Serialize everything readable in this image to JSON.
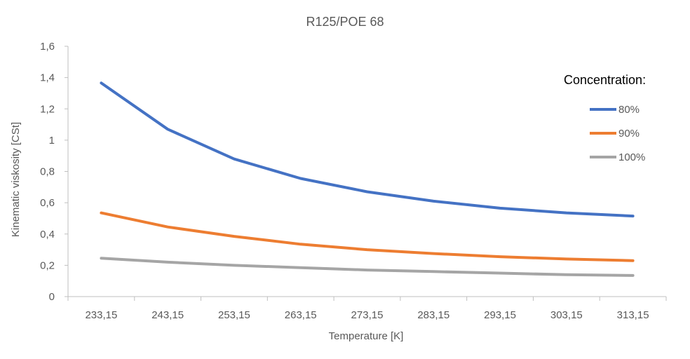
{
  "chart_data": {
    "type": "line",
    "title": "R125/POE 68",
    "xlabel": "Temperature [K]",
    "ylabel": "Kinematic viskosity  [CSt]",
    "categories": [
      "233,15",
      "243,15",
      "253,15",
      "263,15",
      "273,15",
      "283,15",
      "293,15",
      "303,15",
      "313,15"
    ],
    "yticks": [
      "0",
      "0,2",
      "0,4",
      "0,6",
      "0,8",
      "1",
      "1,2",
      "1,4",
      "1,6"
    ],
    "ylim": [
      0,
      1.6
    ],
    "grid": false,
    "legend": {
      "title": "Concentration:",
      "position": "right"
    },
    "series": [
      {
        "name": "80%",
        "color": "#4472C4",
        "values": [
          1.365,
          1.07,
          0.88,
          0.755,
          0.67,
          0.61,
          0.565,
          0.535,
          0.515
        ]
      },
      {
        "name": "90%",
        "color": "#ED7D31",
        "values": [
          0.535,
          0.445,
          0.385,
          0.335,
          0.3,
          0.275,
          0.255,
          0.24,
          0.23
        ]
      },
      {
        "name": "100%",
        "color": "#A5A5A5",
        "values": [
          0.245,
          0.22,
          0.2,
          0.185,
          0.17,
          0.16,
          0.15,
          0.14,
          0.135
        ]
      }
    ]
  }
}
